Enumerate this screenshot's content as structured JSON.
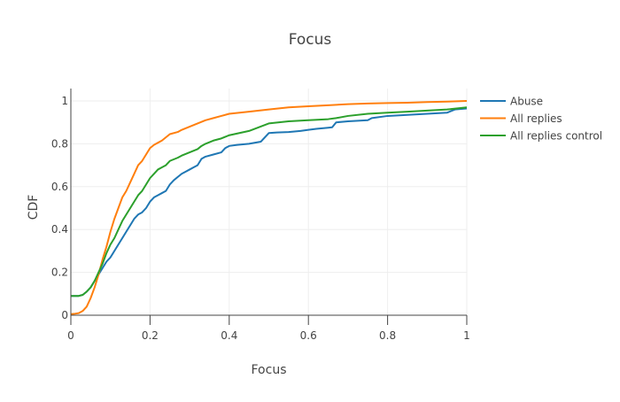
{
  "chart_data": {
    "type": "line",
    "title": "Focus",
    "xlabel": "Focus",
    "ylabel": "CDF",
    "xlim": [
      0,
      1
    ],
    "ylim": [
      0,
      1
    ],
    "xticks": [
      0,
      0.2,
      0.4,
      0.6,
      0.8,
      1
    ],
    "xtick_labels": [
      "0",
      "0.2",
      "0.4",
      "0.6",
      "0.8",
      "1"
    ],
    "yticks": [
      0,
      0.2,
      0.4,
      0.6,
      0.8,
      1
    ],
    "ytick_labels": [
      "0",
      "0.2",
      "0.4",
      "0.6",
      "0.8",
      "1"
    ],
    "grid": true,
    "legend_position": "top-right",
    "series": [
      {
        "name": "Abuse",
        "color": "#1f77b4",
        "x": [
          0,
          0.02,
          0.03,
          0.04,
          0.05,
          0.06,
          0.07,
          0.08,
          0.09,
          0.1,
          0.11,
          0.12,
          0.13,
          0.14,
          0.15,
          0.16,
          0.17,
          0.18,
          0.19,
          0.2,
          0.21,
          0.22,
          0.23,
          0.24,
          0.25,
          0.26,
          0.27,
          0.28,
          0.29,
          0.3,
          0.31,
          0.32,
          0.33,
          0.34,
          0.36,
          0.38,
          0.39,
          0.4,
          0.42,
          0.45,
          0.48,
          0.5,
          0.52,
          0.55,
          0.58,
          0.6,
          0.62,
          0.65,
          0.66,
          0.67,
          0.7,
          0.75,
          0.76,
          0.8,
          0.85,
          0.9,
          0.95,
          0.97,
          1.0
        ],
        "y": [
          0.09,
          0.09,
          0.095,
          0.11,
          0.13,
          0.16,
          0.19,
          0.22,
          0.25,
          0.27,
          0.3,
          0.33,
          0.36,
          0.39,
          0.42,
          0.45,
          0.47,
          0.48,
          0.5,
          0.53,
          0.55,
          0.56,
          0.57,
          0.58,
          0.61,
          0.63,
          0.645,
          0.66,
          0.67,
          0.68,
          0.69,
          0.7,
          0.73,
          0.74,
          0.75,
          0.76,
          0.78,
          0.79,
          0.795,
          0.8,
          0.81,
          0.85,
          0.853,
          0.855,
          0.86,
          0.865,
          0.87,
          0.875,
          0.877,
          0.9,
          0.905,
          0.91,
          0.92,
          0.93,
          0.935,
          0.94,
          0.945,
          0.96,
          0.965
        ]
      },
      {
        "name": "All replies",
        "color": "#ff7f0e",
        "x": [
          0,
          0.01,
          0.02,
          0.03,
          0.04,
          0.05,
          0.06,
          0.07,
          0.08,
          0.09,
          0.1,
          0.11,
          0.12,
          0.13,
          0.14,
          0.15,
          0.16,
          0.17,
          0.18,
          0.19,
          0.2,
          0.21,
          0.22,
          0.23,
          0.24,
          0.25,
          0.27,
          0.28,
          0.3,
          0.32,
          0.34,
          0.36,
          0.38,
          0.4,
          0.45,
          0.5,
          0.55,
          0.6,
          0.65,
          0.7,
          0.75,
          0.8,
          0.85,
          0.9,
          0.95,
          1.0
        ],
        "y": [
          0.005,
          0.007,
          0.01,
          0.02,
          0.04,
          0.08,
          0.13,
          0.19,
          0.26,
          0.32,
          0.39,
          0.45,
          0.5,
          0.55,
          0.58,
          0.62,
          0.66,
          0.7,
          0.72,
          0.75,
          0.78,
          0.795,
          0.805,
          0.815,
          0.83,
          0.845,
          0.855,
          0.865,
          0.88,
          0.895,
          0.91,
          0.92,
          0.93,
          0.94,
          0.95,
          0.96,
          0.97,
          0.975,
          0.98,
          0.985,
          0.988,
          0.99,
          0.992,
          0.995,
          0.997,
          1.0
        ]
      },
      {
        "name": "All replies control",
        "color": "#2ca02c",
        "x": [
          0,
          0.02,
          0.03,
          0.04,
          0.05,
          0.06,
          0.07,
          0.08,
          0.09,
          0.1,
          0.11,
          0.12,
          0.13,
          0.14,
          0.15,
          0.16,
          0.17,
          0.18,
          0.19,
          0.2,
          0.21,
          0.22,
          0.23,
          0.24,
          0.25,
          0.27,
          0.28,
          0.3,
          0.32,
          0.33,
          0.34,
          0.36,
          0.38,
          0.4,
          0.45,
          0.5,
          0.55,
          0.6,
          0.65,
          0.67,
          0.7,
          0.75,
          0.8,
          0.85,
          0.9,
          0.95,
          1.0
        ],
        "y": [
          0.09,
          0.09,
          0.095,
          0.11,
          0.13,
          0.16,
          0.2,
          0.24,
          0.29,
          0.33,
          0.36,
          0.4,
          0.44,
          0.47,
          0.5,
          0.53,
          0.56,
          0.58,
          0.61,
          0.64,
          0.66,
          0.68,
          0.69,
          0.7,
          0.72,
          0.735,
          0.745,
          0.76,
          0.775,
          0.79,
          0.8,
          0.815,
          0.825,
          0.84,
          0.86,
          0.895,
          0.905,
          0.91,
          0.915,
          0.92,
          0.93,
          0.94,
          0.945,
          0.95,
          0.955,
          0.96,
          0.97
        ]
      }
    ]
  }
}
